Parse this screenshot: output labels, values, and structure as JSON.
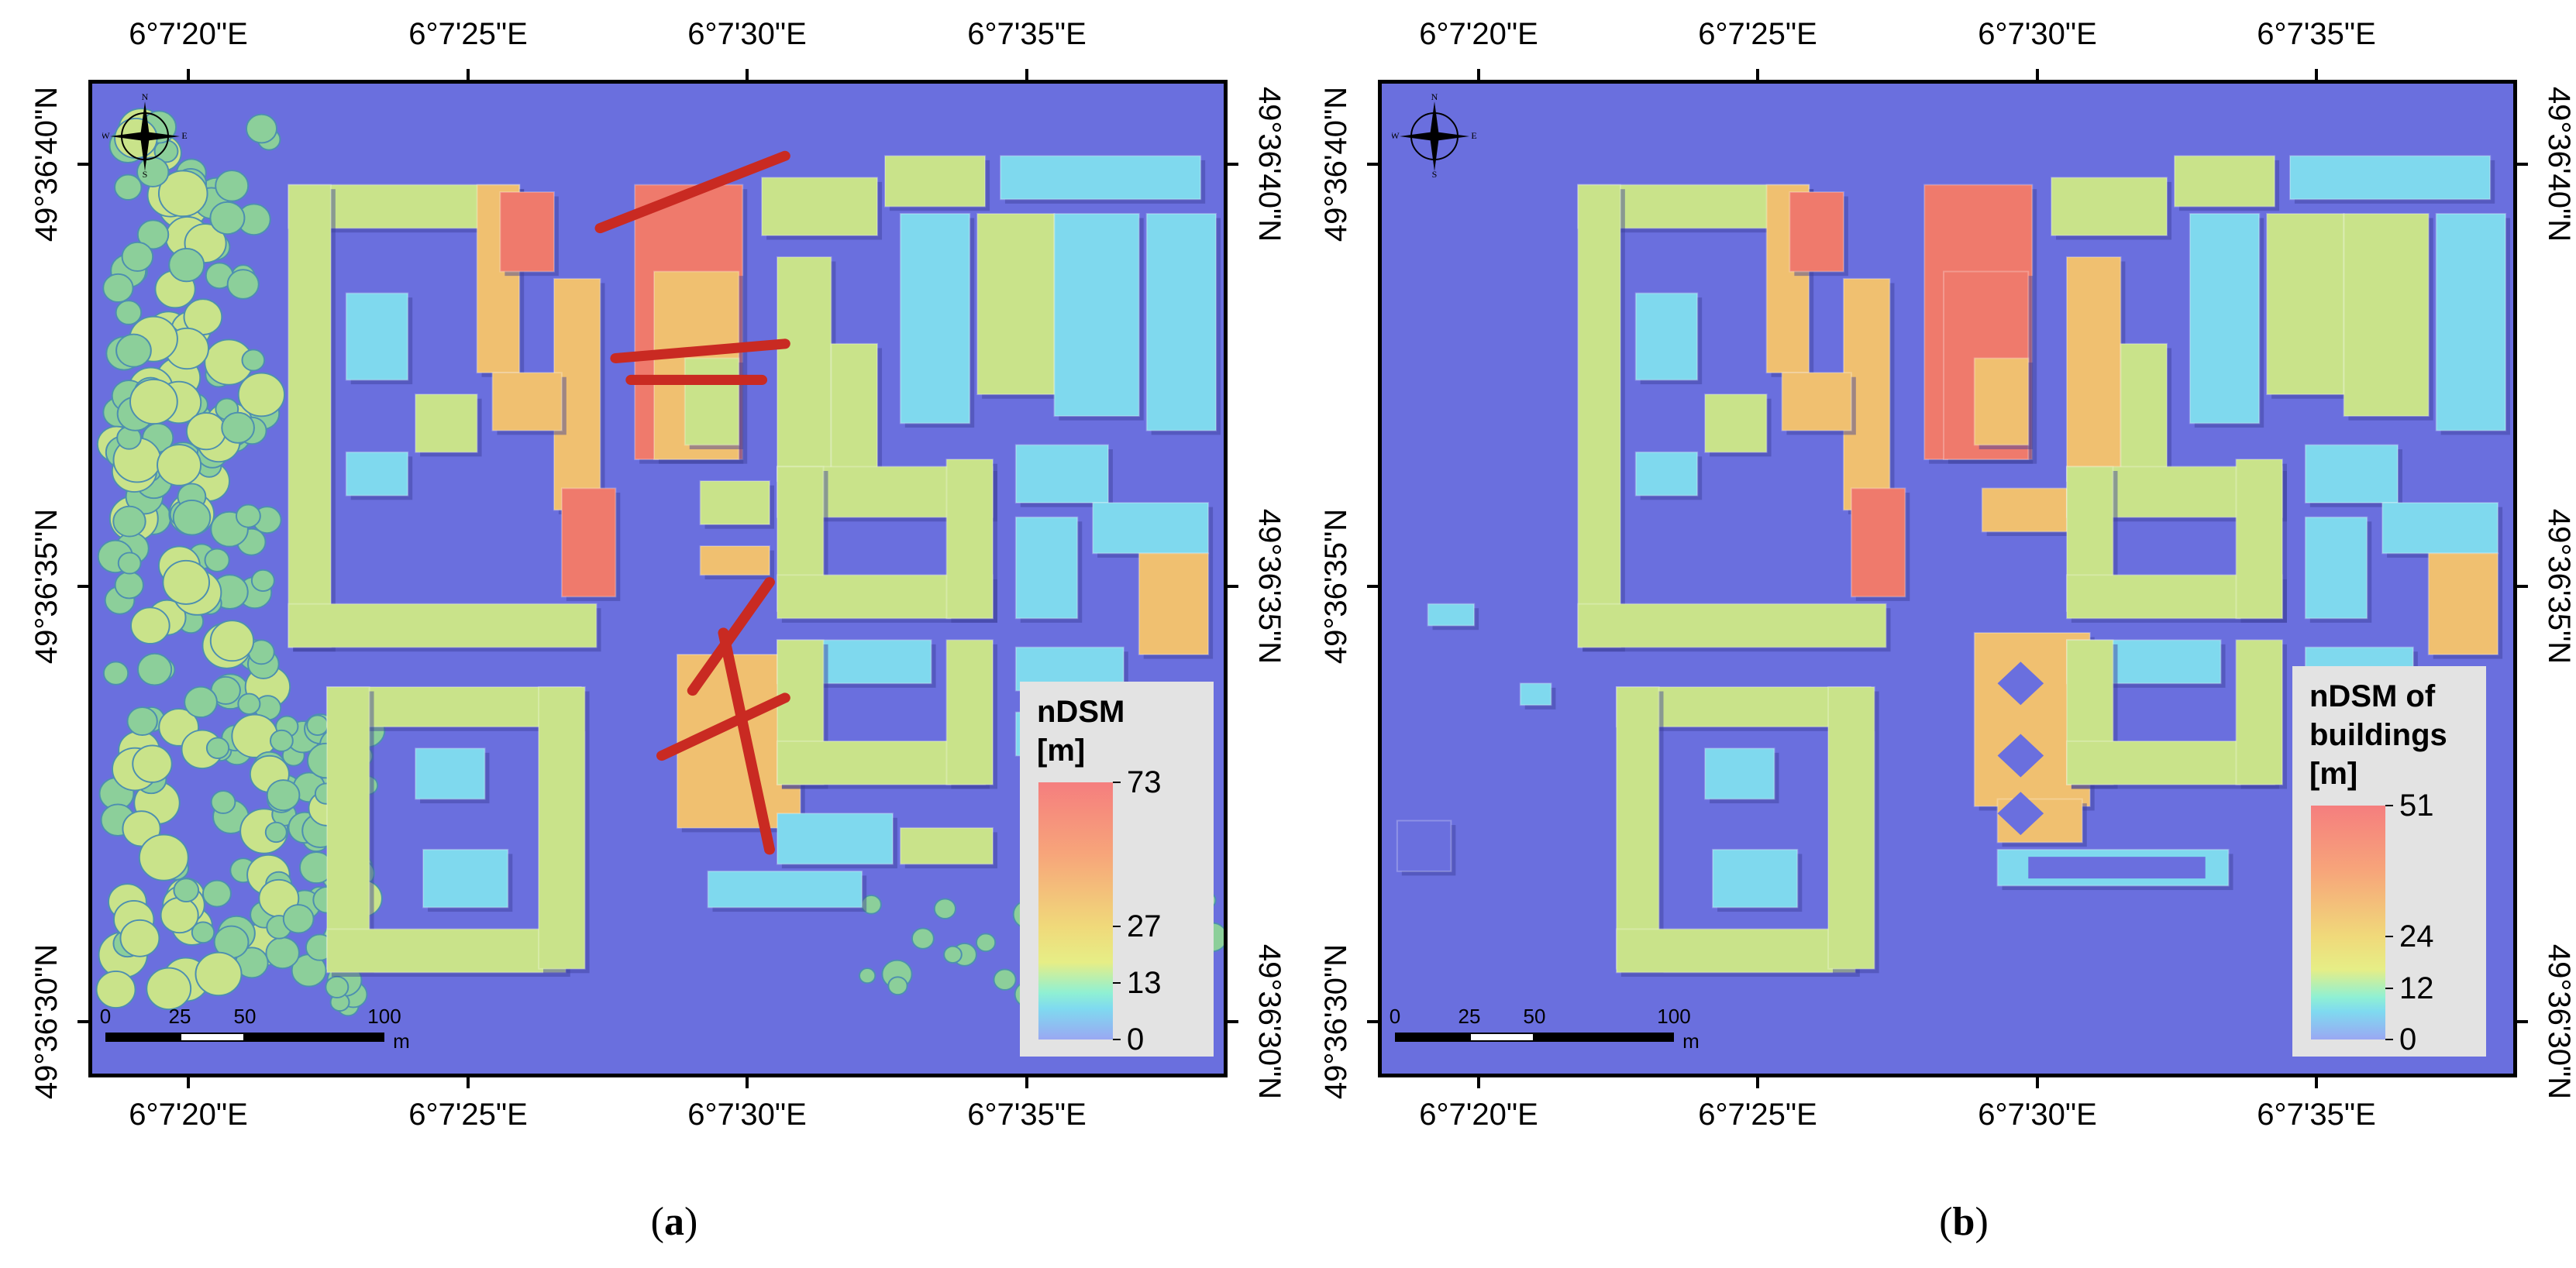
{
  "panels": [
    {
      "id": "a",
      "caption_open": "(",
      "caption_letter": "a",
      "caption_close": ")",
      "top_ticks": [
        "6°7'20\"E",
        "6°7'25\"E",
        "6°7'30\"E",
        "6°7'35\"E"
      ],
      "bottom_ticks": [
        "6°7'20\"E",
        "6°7'25\"E",
        "6°7'30\"E",
        "6°7'35\"E"
      ],
      "left_ticks": [
        "49°36'40\"N",
        "49°36'35\"N",
        "49°36'30\"N"
      ],
      "right_ticks": [
        "49°36'40\"N",
        "49°36'35\"N",
        "49°36'30\"N"
      ],
      "legend": {
        "title_lines": [
          "nDSM",
          "[m]"
        ],
        "values": [
          "73",
          "27",
          "13",
          "0"
        ]
      },
      "scale_bar": {
        "labels": [
          "0",
          "25",
          "50",
          "100"
        ],
        "unit": "m"
      },
      "north_arrow": {
        "n": "N",
        "s": "S",
        "e": "E",
        "w": "W"
      }
    },
    {
      "id": "b",
      "caption_open": "(",
      "caption_letter": "b",
      "caption_close": ")",
      "top_ticks": [
        "6°7'20\"E",
        "6°7'25\"E",
        "6°7'30\"E",
        "6°7'35\"E"
      ],
      "bottom_ticks": [
        "6°7'20\"E",
        "6°7'25\"E",
        "6°7'30\"E",
        "6°7'35\"E"
      ],
      "left_ticks": [
        "49°36'40\"N",
        "49°36'35\"N",
        "49°36'30\"N"
      ],
      "right_ticks": [
        "49°36'40\"N",
        "49°36'35\"N",
        "49°36'30\"N"
      ],
      "legend": {
        "title_lines": [
          "nDSM of",
          "buildings",
          "[m]"
        ],
        "values": [
          "51",
          "24",
          "12",
          "0"
        ]
      },
      "scale_bar": {
        "labels": [
          "0",
          "25",
          "50",
          "100"
        ],
        "unit": "m"
      },
      "north_arrow": {
        "n": "N",
        "s": "S",
        "e": "E",
        "w": "W"
      }
    }
  ],
  "colors": {
    "ground": "#6a6fde",
    "low": "#7fd9ee",
    "mid": "#c9e38a",
    "high": "#f0c070",
    "top": "#ef7a6c",
    "crane": "#c92a22",
    "tree": "#8ccf9a"
  }
}
